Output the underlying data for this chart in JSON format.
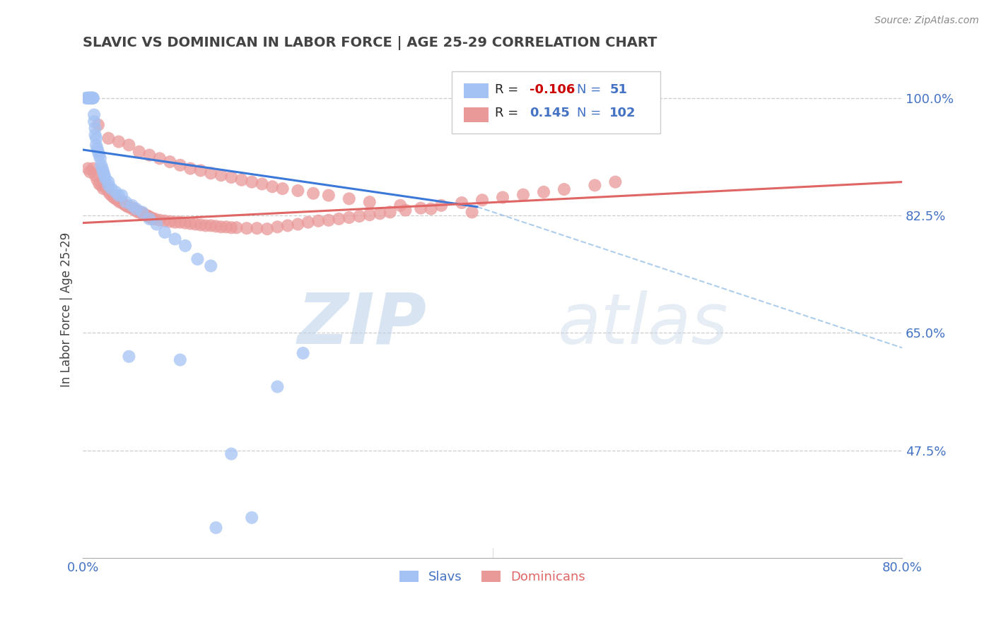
{
  "title": "SLAVIC VS DOMINICAN IN LABOR FORCE | AGE 25-29 CORRELATION CHART",
  "source": "Source: ZipAtlas.com",
  "ylabel": "In Labor Force | Age 25-29",
  "xlim": [
    0.0,
    0.8
  ],
  "ylim": [
    0.315,
    1.055
  ],
  "yticks": [
    0.475,
    0.65,
    0.825,
    1.0
  ],
  "ytick_labels": [
    "47.5%",
    "65.0%",
    "82.5%",
    "100.0%"
  ],
  "slav_R": -0.106,
  "slav_N": 51,
  "dom_R": 0.145,
  "dom_N": 102,
  "slav_color": "#a4c2f4",
  "dom_color": "#ea9999",
  "slav_line_color": "#3c78d8",
  "dom_line_color": "#e06666",
  "dash_color": "#9fc5e8",
  "title_color": "#434343",
  "axis_label_color": "#434343",
  "tick_color": "#4472c4",
  "background_color": "#ffffff",
  "slav_line_x0": 0.0,
  "slav_line_y0": 0.923,
  "slav_line_x1": 0.385,
  "slav_line_y1": 0.838,
  "dash_line_x0": 0.385,
  "dash_line_y0": 0.838,
  "dash_line_x1": 0.8,
  "dash_line_y1": 0.628,
  "dom_line_x0": 0.0,
  "dom_line_y0": 0.814,
  "dom_line_x1": 0.8,
  "dom_line_y1": 0.875,
  "slav_x": [
    0.003,
    0.005,
    0.005,
    0.006,
    0.007,
    0.007,
    0.008,
    0.008,
    0.009,
    0.009,
    0.01,
    0.01,
    0.011,
    0.011,
    0.012,
    0.012,
    0.013,
    0.013,
    0.014,
    0.015,
    0.016,
    0.017,
    0.018,
    0.019,
    0.02,
    0.021,
    0.022,
    0.025,
    0.025,
    0.028,
    0.032,
    0.035,
    0.038,
    0.042,
    0.048,
    0.052,
    0.058,
    0.065,
    0.072,
    0.08,
    0.09,
    0.1,
    0.112,
    0.125,
    0.145,
    0.165,
    0.19,
    0.215,
    0.045,
    0.095,
    0.13
  ],
  "slav_y": [
    1.0,
    1.0,
    1.0,
    1.0,
    1.0,
    1.0,
    1.0,
    1.0,
    1.0,
    1.0,
    1.0,
    1.0,
    0.975,
    0.965,
    0.955,
    0.945,
    0.94,
    0.93,
    0.925,
    0.92,
    0.915,
    0.91,
    0.9,
    0.895,
    0.89,
    0.885,
    0.88,
    0.875,
    0.87,
    0.865,
    0.86,
    0.855,
    0.855,
    0.845,
    0.84,
    0.835,
    0.83,
    0.82,
    0.812,
    0.8,
    0.79,
    0.78,
    0.76,
    0.75,
    0.47,
    0.375,
    0.57,
    0.62,
    0.615,
    0.61,
    0.36
  ],
  "dom_x": [
    0.005,
    0.007,
    0.01,
    0.012,
    0.014,
    0.016,
    0.018,
    0.02,
    0.022,
    0.024,
    0.026,
    0.028,
    0.03,
    0.032,
    0.034,
    0.036,
    0.038,
    0.04,
    0.042,
    0.044,
    0.046,
    0.048,
    0.05,
    0.052,
    0.054,
    0.056,
    0.058,
    0.06,
    0.062,
    0.064,
    0.066,
    0.068,
    0.07,
    0.075,
    0.08,
    0.085,
    0.09,
    0.095,
    0.1,
    0.105,
    0.11,
    0.115,
    0.12,
    0.125,
    0.13,
    0.135,
    0.14,
    0.145,
    0.15,
    0.16,
    0.17,
    0.18,
    0.19,
    0.2,
    0.21,
    0.22,
    0.23,
    0.24,
    0.25,
    0.26,
    0.27,
    0.28,
    0.29,
    0.3,
    0.315,
    0.33,
    0.35,
    0.37,
    0.39,
    0.41,
    0.43,
    0.45,
    0.47,
    0.5,
    0.52,
    0.015,
    0.025,
    0.035,
    0.045,
    0.055,
    0.065,
    0.075,
    0.085,
    0.095,
    0.105,
    0.115,
    0.125,
    0.135,
    0.145,
    0.155,
    0.165,
    0.175,
    0.185,
    0.195,
    0.21,
    0.225,
    0.24,
    0.26,
    0.28,
    0.31,
    0.34,
    0.38
  ],
  "dom_y": [
    0.895,
    0.89,
    0.895,
    0.885,
    0.878,
    0.872,
    0.87,
    0.865,
    0.868,
    0.863,
    0.858,
    0.855,
    0.852,
    0.85,
    0.848,
    0.845,
    0.845,
    0.842,
    0.84,
    0.838,
    0.838,
    0.835,
    0.835,
    0.832,
    0.83,
    0.83,
    0.828,
    0.827,
    0.825,
    0.824,
    0.822,
    0.82,
    0.82,
    0.818,
    0.817,
    0.816,
    0.815,
    0.815,
    0.814,
    0.813,
    0.812,
    0.811,
    0.81,
    0.81,
    0.809,
    0.808,
    0.808,
    0.807,
    0.807,
    0.806,
    0.806,
    0.805,
    0.808,
    0.81,
    0.812,
    0.815,
    0.817,
    0.818,
    0.82,
    0.822,
    0.824,
    0.826,
    0.828,
    0.83,
    0.833,
    0.836,
    0.84,
    0.844,
    0.848,
    0.852,
    0.856,
    0.86,
    0.864,
    0.87,
    0.875,
    0.96,
    0.94,
    0.935,
    0.93,
    0.92,
    0.915,
    0.91,
    0.905,
    0.9,
    0.895,
    0.892,
    0.888,
    0.885,
    0.882,
    0.878,
    0.875,
    0.872,
    0.868,
    0.865,
    0.862,
    0.858,
    0.855,
    0.85,
    0.845,
    0.84,
    0.835,
    0.83
  ]
}
